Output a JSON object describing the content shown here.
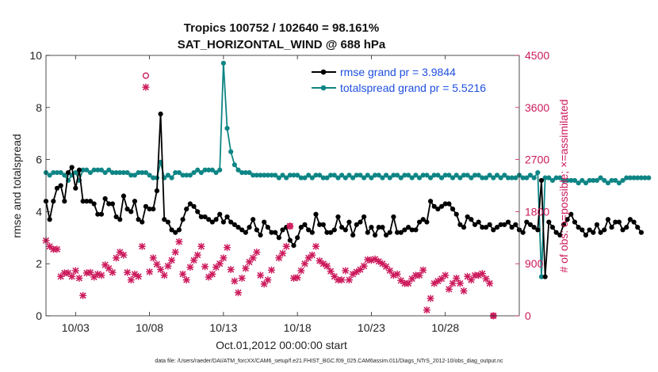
{
  "chart_data": {
    "type": "line",
    "title_line1": "Tropics 100752 / 102640 = 98.161%",
    "title_line2": "SAT_HORIZONTAL_WIND @ 688 hPa",
    "xlabel": "Oct.01,2012 00:00:00 start",
    "ylabel": "rmse and totalspread",
    "y2label": "# of obs: o=possible; ×=assimilated",
    "footnote": "data file: /Users/raeder/DAI/ATM_forcXX/CAM6_setup/f.e21.FHIST_BGC.f09_025.CAM6assim.011/Diags_NTrS_2012-10/obs_diag_output.nc",
    "ylim": [
      0,
      10
    ],
    "y2lim": [
      0,
      4500
    ],
    "xlim": [
      1.0,
      33.0
    ],
    "x_ticks": [
      {
        "value": 3,
        "label": "10/03"
      },
      {
        "value": 8,
        "label": "10/08"
      },
      {
        "value": 13,
        "label": "10/13"
      },
      {
        "value": 18,
        "label": "10/18"
      },
      {
        "value": 23,
        "label": "10/23"
      },
      {
        "value": 28,
        "label": "10/28"
      }
    ],
    "y_ticks": [
      {
        "value": 0,
        "label": "0"
      },
      {
        "value": 2,
        "label": "2"
      },
      {
        "value": 4,
        "label": "4"
      },
      {
        "value": 6,
        "label": "6"
      },
      {
        "value": 8,
        "label": "8"
      },
      {
        "value": 10,
        "label": "10"
      }
    ],
    "y2_ticks": [
      {
        "value": 0,
        "label": "0"
      },
      {
        "value": 900,
        "label": "900"
      },
      {
        "value": 1800,
        "label": "1800"
      },
      {
        "value": 2700,
        "label": "2700"
      },
      {
        "value": 3600,
        "label": "3600"
      },
      {
        "value": 4500,
        "label": "4500"
      }
    ],
    "x_start": 1.0,
    "x_step": 0.25,
    "series": [
      {
        "name": "rmse grand pr = 3.9844",
        "color": "#000000",
        "axis": "left",
        "values": [
          4.4,
          3.7,
          4.4,
          4.9,
          5.0,
          4.4,
          5.5,
          5.7,
          4.9,
          5.6,
          4.4,
          4.4,
          4.4,
          4.3,
          3.9,
          3.9,
          4.5,
          4.3,
          4.3,
          3.8,
          3.7,
          4.6,
          4.1,
          4.0,
          4.4,
          3.7,
          3.6,
          4.2,
          4.1,
          4.1,
          4.8,
          7.75,
          3.7,
          3.6,
          3.3,
          3.2,
          3.3,
          3.7,
          4.1,
          4.3,
          4.2,
          4.0,
          3.8,
          3.8,
          3.7,
          3.6,
          3.7,
          3.9,
          3.6,
          3.8,
          3.6,
          3.5,
          3.4,
          3.3,
          3.2,
          3.4,
          3.7,
          3.3,
          3.1,
          3.6,
          3.4,
          3.2,
          3.2,
          3.0,
          3.3,
          3.4,
          2.9,
          2.7,
          3.0,
          3.4,
          3.5,
          3.3,
          3.2,
          3.9,
          3.5,
          3.5,
          3.2,
          3.2,
          3.3,
          3.8,
          3.4,
          3.3,
          3.6,
          3.1,
          3.5,
          3.6,
          3.8,
          3.2,
          3.4,
          3.1,
          3.4,
          3.4,
          3.1,
          3.2,
          3.8,
          3.2,
          3.2,
          3.3,
          3.4,
          3.3,
          3.3,
          3.6,
          3.7,
          3.6,
          4.4,
          4.2,
          4.1,
          4.2,
          4.3,
          4.3,
          4.1,
          3.9,
          3.5,
          3.4,
          3.8,
          3.7,
          3.5,
          3.6,
          3.4,
          3.4,
          3.5,
          3.3,
          3.4,
          3.5,
          3.5,
          3.6,
          3.4,
          3.5,
          3.3,
          3.2,
          3.6,
          3.5,
          3.4,
          3.3,
          5.2,
          1.5,
          3.6,
          3.4,
          3.2,
          3.1,
          3.5,
          3.7,
          3.9,
          3.6,
          3.4,
          3.3,
          3.1,
          3.3,
          3.2,
          3.5,
          3.2,
          3.3,
          3.7,
          3.4,
          3.6,
          3.6,
          3.3,
          3.4,
          3.7,
          3.6,
          3.4,
          3.2
        ]
      },
      {
        "name": "totalspread grand pr = 5.5216",
        "color": "#0e8585",
        "axis": "left",
        "values": [
          5.5,
          5.4,
          5.5,
          5.5,
          5.5,
          5.4,
          5.2,
          5.4,
          5.5,
          5.2,
          5.6,
          5.6,
          5.5,
          5.6,
          5.6,
          5.6,
          5.5,
          5.6,
          5.5,
          5.5,
          5.5,
          5.5,
          5.5,
          5.4,
          5.4,
          5.5,
          5.5,
          5.5,
          5.4,
          5.3,
          5.3,
          5.9,
          5.3,
          5.4,
          5.3,
          5.5,
          5.5,
          5.4,
          5.4,
          5.4,
          5.5,
          5.6,
          5.5,
          5.6,
          5.6,
          5.6,
          5.5,
          5.6,
          9.7,
          7.2,
          6.3,
          5.8,
          5.6,
          5.5,
          5.5,
          5.5,
          5.4,
          5.4,
          5.4,
          5.4,
          5.4,
          5.4,
          5.4,
          5.3,
          5.4,
          5.3,
          5.4,
          5.4,
          5.4,
          5.3,
          5.3,
          5.4,
          5.3,
          5.4,
          5.4,
          5.3,
          5.3,
          5.4,
          5.4,
          5.3,
          5.4,
          5.3,
          5.4,
          5.3,
          5.4,
          5.4,
          5.3,
          5.4,
          5.3,
          5.4,
          5.4,
          5.3,
          5.4,
          5.3,
          5.4,
          5.4,
          5.3,
          5.4,
          5.4,
          5.3,
          5.4,
          5.3,
          5.4,
          5.4,
          5.3,
          5.4,
          5.4,
          5.3,
          5.4,
          5.4,
          5.3,
          5.4,
          5.3,
          5.4,
          5.4,
          5.3,
          5.4,
          5.4,
          5.3,
          5.3,
          5.4,
          5.3,
          5.4,
          5.3,
          5.4,
          5.3,
          5.3,
          5.3,
          5.4,
          5.3,
          5.3,
          5.4,
          5.3,
          5.5,
          1.5,
          5.3,
          5.3,
          5.2,
          5.3,
          5.3,
          5.2,
          5.2,
          5.2,
          5.2,
          5.1,
          5.2,
          5.1,
          5.2,
          5.2,
          5.2,
          5.3,
          5.2,
          5.1,
          5.2,
          5.2,
          5.1,
          5.2,
          5.3,
          5.3,
          5.3,
          5.3,
          5.3,
          5.3,
          5.3
        ]
      }
    ],
    "obs_assimilated": {
      "name": "# of obs assimilated (×)",
      "color": "#cc1a5c",
      "axis": "right",
      "points": [
        [
          1.0,
          1300
        ],
        [
          1.25,
          1200
        ],
        [
          1.5,
          1150
        ],
        [
          1.75,
          1150
        ],
        [
          2.0,
          680
        ],
        [
          2.25,
          740
        ],
        [
          2.5,
          740
        ],
        [
          2.75,
          680
        ],
        [
          3.0,
          780
        ],
        [
          3.25,
          650
        ],
        [
          3.5,
          350
        ],
        [
          3.75,
          740
        ],
        [
          4.0,
          750
        ],
        [
          4.25,
          670
        ],
        [
          4.5,
          720
        ],
        [
          4.75,
          700
        ],
        [
          5.0,
          880
        ],
        [
          5.25,
          820
        ],
        [
          5.5,
          750
        ],
        [
          5.75,
          1000
        ],
        [
          6.0,
          1100
        ],
        [
          6.25,
          1050
        ],
        [
          6.5,
          750
        ],
        [
          6.75,
          620
        ],
        [
          7.0,
          720
        ],
        [
          7.25,
          680
        ],
        [
          7.5,
          1200
        ],
        [
          7.75,
          3950
        ],
        [
          8.0,
          760
        ],
        [
          8.25,
          1000
        ],
        [
          8.5,
          890
        ],
        [
          8.75,
          800
        ],
        [
          9.0,
          700
        ],
        [
          9.25,
          860
        ],
        [
          9.5,
          960
        ],
        [
          9.75,
          1100
        ],
        [
          10.0,
          1280
        ],
        [
          10.25,
          720
        ],
        [
          10.5,
          620
        ],
        [
          10.75,
          840
        ],
        [
          11.0,
          960
        ],
        [
          11.25,
          1050
        ],
        [
          11.5,
          1200
        ],
        [
          11.75,
          850
        ],
        [
          12.0,
          670
        ],
        [
          12.25,
          720
        ],
        [
          12.5,
          840
        ],
        [
          12.75,
          900
        ],
        [
          13.0,
          1000
        ],
        [
          13.25,
          1180
        ],
        [
          13.5,
          800
        ],
        [
          13.75,
          600
        ],
        [
          14.0,
          400
        ],
        [
          14.25,
          650
        ],
        [
          14.5,
          820
        ],
        [
          14.75,
          930
        ],
        [
          15.0,
          1000
        ],
        [
          15.25,
          1100
        ],
        [
          15.5,
          700
        ],
        [
          15.75,
          550
        ],
        [
          16.0,
          620
        ],
        [
          16.25,
          790
        ],
        [
          16.75,
          1000
        ],
        [
          17.0,
          1080
        ],
        [
          17.25,
          1200
        ],
        [
          17.5,
          1550
        ],
        [
          17.75,
          650
        ],
        [
          18.0,
          660
        ],
        [
          18.25,
          780
        ],
        [
          18.5,
          900
        ],
        [
          18.75,
          1000
        ],
        [
          19.0,
          1050
        ],
        [
          19.25,
          1200
        ],
        [
          19.5,
          950
        ],
        [
          19.75,
          900
        ],
        [
          20.0,
          860
        ],
        [
          20.25,
          770
        ],
        [
          20.5,
          680
        ],
        [
          20.75,
          620
        ],
        [
          21.0,
          620
        ],
        [
          21.25,
          780
        ],
        [
          21.5,
          620
        ],
        [
          21.75,
          720
        ],
        [
          22.0,
          760
        ],
        [
          22.25,
          800
        ],
        [
          22.5,
          860
        ],
        [
          22.75,
          970
        ],
        [
          23.0,
          960
        ],
        [
          23.25,
          980
        ],
        [
          23.5,
          940
        ],
        [
          23.75,
          900
        ],
        [
          24.0,
          850
        ],
        [
          24.25,
          780
        ],
        [
          24.5,
          700
        ],
        [
          24.75,
          720
        ],
        [
          25.0,
          610
        ],
        [
          25.25,
          560
        ],
        [
          25.5,
          560
        ],
        [
          25.75,
          640
        ],
        [
          26.0,
          700
        ],
        [
          26.25,
          700
        ],
        [
          26.5,
          790
        ],
        [
          26.75,
          100
        ],
        [
          27.0,
          300
        ],
        [
          27.25,
          560
        ],
        [
          27.5,
          600
        ],
        [
          27.75,
          640
        ],
        [
          28.0,
          700
        ],
        [
          28.25,
          460
        ],
        [
          28.5,
          560
        ],
        [
          28.75,
          650
        ],
        [
          29.0,
          560
        ],
        [
          29.25,
          430
        ],
        [
          29.5,
          680
        ],
        [
          29.75,
          620
        ],
        [
          30.0,
          700
        ],
        [
          30.25,
          700
        ],
        [
          30.5,
          730
        ],
        [
          30.75,
          640
        ],
        [
          31.0,
          560
        ],
        [
          31.25,
          0
        ]
      ]
    },
    "obs_possible": {
      "name": "# of obs possible (o)",
      "color": "#cc1a5c",
      "axis": "right",
      "points": [
        [
          7.75,
          4150
        ],
        [
          17.5,
          1550
        ],
        [
          31.25,
          0
        ]
      ]
    }
  }
}
